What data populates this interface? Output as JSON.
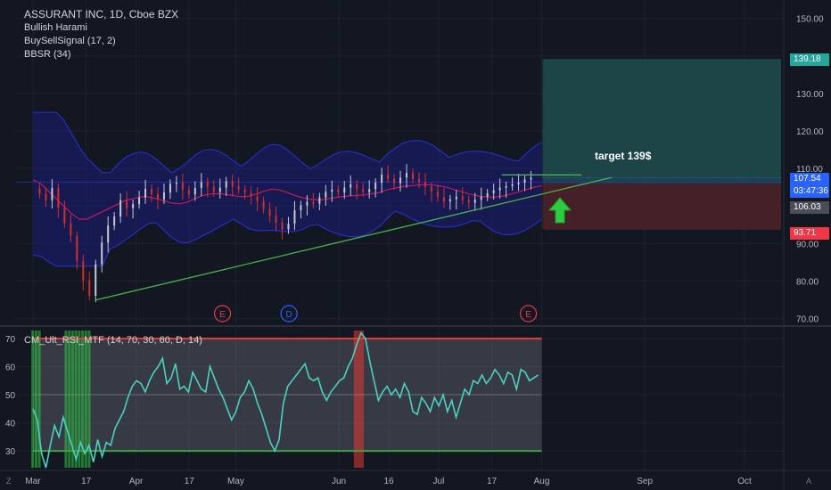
{
  "legend": {
    "title": "ASSURANT INC, 1D, Cboe BZX",
    "study1": "Bullish Harami",
    "study2": "BuySellSignal (17, 2)",
    "study3": "BBSR (34)",
    "rsi": "CM_Ult_RSI_MTF (14, 70, 30, 60, D, 14)"
  },
  "annotation": "target 139$",
  "price_tags": {
    "target": "139.18",
    "last": "107.54",
    "countdown": "03:47:36",
    "entry": "106.03",
    "stop": "93.71"
  },
  "colors": {
    "background": "#131722",
    "bb_band": "#1c1f8a",
    "bb_mid": "#c2185b",
    "trendline": "#4caf50",
    "target_zone": "#1f4a4b",
    "stop_zone": "#4b2228",
    "rsi_line": "#4dd0c1",
    "rsi_upper": "#e53935",
    "rsi_lower": "#43a047",
    "arrow": "#2ecc40"
  },
  "bottom_left_icon": "z-icon",
  "bottom_right_icon": "a-auto-icon",
  "chart_data": [
    {
      "type": "candlestick",
      "title": "ASSURANT INC, 1D, Cboe BZX",
      "y_axis_labels": [
        "150.00",
        "140.00",
        "130.00",
        "120.00",
        "110.00",
        "100.00",
        "90.00",
        "80.00",
        "70.00"
      ],
      "x_axis_labels": [
        "Mar",
        "17",
        "Apr",
        "17",
        "May",
        "Jun",
        "16",
        "Jul",
        "17",
        "Aug",
        "Sep",
        "Oct"
      ],
      "ylim": [
        68.5,
        153
      ],
      "close_series": [
        103.2,
        101.5,
        104.8,
        99.6,
        95.4,
        92.1,
        85.3,
        80.2,
        76.1,
        84.5,
        90.3,
        94.8,
        97.2,
        101.6,
        99.4,
        100.5,
        102.3,
        104.6,
        103.2,
        101.8,
        103.6,
        105.9,
        106.2,
        104.3,
        103.1,
        104.8,
        106.4,
        105.1,
        103.7,
        104.9,
        106.6,
        105.2,
        104.4,
        103.5,
        102.6,
        101.3,
        99.2,
        97.4,
        95.6,
        93.8,
        95.3,
        98.9,
        100.2,
        101.1,
        100.6,
        102.3,
        103.8,
        104.4,
        103.6,
        104.9,
        105.8,
        104.5,
        103.7,
        104.5,
        106.2,
        108.4,
        107.3,
        106.1,
        107.6,
        108.8,
        107.2,
        106.4,
        105.1,
        103.8,
        102.4,
        101.2,
        101.8,
        102.5,
        101.6,
        100.9,
        101.7,
        102.5,
        103.4,
        104.2,
        104.9,
        105.3,
        105.8,
        106.2,
        107.1,
        107.54
      ],
      "bollinger_mid": [
        107,
        106,
        104,
        102,
        100,
        98,
        96.5,
        96.5,
        97.5,
        98.5,
        99.5,
        100.5,
        101.5,
        102,
        102.5,
        102.4,
        102,
        101.4,
        100.8,
        100.6,
        101,
        102,
        102.8,
        103.2,
        103.3,
        103.1,
        102.8,
        102.5,
        102.6,
        103.2,
        104,
        104.5,
        104.3,
        103.6,
        102.8,
        102.2,
        101.8,
        101.6,
        101.8,
        102.2,
        102.5,
        102.7,
        102.8,
        103,
        103.3,
        103.6,
        104.4,
        104.8,
        105.2,
        105.4,
        105.6,
        105.7,
        105.6,
        105.3,
        104.8,
        104.2,
        103.6,
        103,
        102.6,
        102.4,
        102.4,
        102.7,
        103.2,
        103.8,
        104.4,
        105,
        105.4
      ],
      "bollinger_upper_range": [
        108,
        125
      ],
      "bollinger_lower_range": [
        84,
        98
      ],
      "target_zone": [
        106.03,
        139.18
      ],
      "stop_zone": [
        93.71,
        106.03
      ],
      "trendline": {
        "from": "Mar 20",
        "to": "Aug 22",
        "start_value": 75,
        "end_value": 107.6
      },
      "resistance_line": 108.3,
      "earnings_markers": [
        "Apr 27 (E)",
        "May 17 (D)",
        "Jul 28 (E)"
      ]
    },
    {
      "type": "line",
      "title": "CM_Ult_RSI_MTF (14, 70, 30, 60, D, 14)",
      "y_axis_labels": [
        "70",
        "60",
        "50",
        "40",
        "30"
      ],
      "ylim": [
        24,
        73.5
      ],
      "upper_band": 70,
      "lower_band": 30,
      "mid_line": 50,
      "values": [
        45,
        41,
        29,
        24,
        32,
        39,
        35,
        42,
        37,
        32,
        27,
        33,
        29,
        32,
        26,
        34,
        28,
        33,
        32,
        38,
        41,
        44,
        49,
        53,
        55,
        54,
        51,
        55,
        58,
        60,
        63,
        54,
        56,
        61,
        52,
        53,
        51,
        58,
        55,
        52,
        51,
        60,
        56,
        52,
        49,
        45,
        41,
        44,
        49,
        51,
        55,
        52,
        47,
        43,
        38,
        33,
        30,
        34,
        47,
        53,
        55,
        57,
        59,
        61,
        56,
        55,
        56,
        51,
        48,
        51,
        53,
        55,
        56,
        60,
        63,
        68,
        72,
        70,
        62,
        55,
        48,
        51,
        53,
        50,
        52,
        49,
        54,
        51,
        44,
        43,
        49,
        47,
        44,
        49,
        46,
        50,
        44,
        48,
        42,
        47,
        52,
        50,
        55,
        54,
        57,
        54,
        56,
        59,
        57,
        54,
        58,
        57,
        52,
        59,
        58,
        55,
        56,
        57
      ],
      "oversold_bars": [
        "Mar 1",
        "Mar 2",
        "Mar 3",
        "Mar 11",
        "Mar 12",
        "Mar 13",
        "Mar 14",
        "Mar 15",
        "Mar 16",
        "Mar 17",
        "Mar 18"
      ],
      "overbought_bars": [
        "Jun 6",
        "Jun 7",
        "Jun 8"
      ]
    }
  ]
}
